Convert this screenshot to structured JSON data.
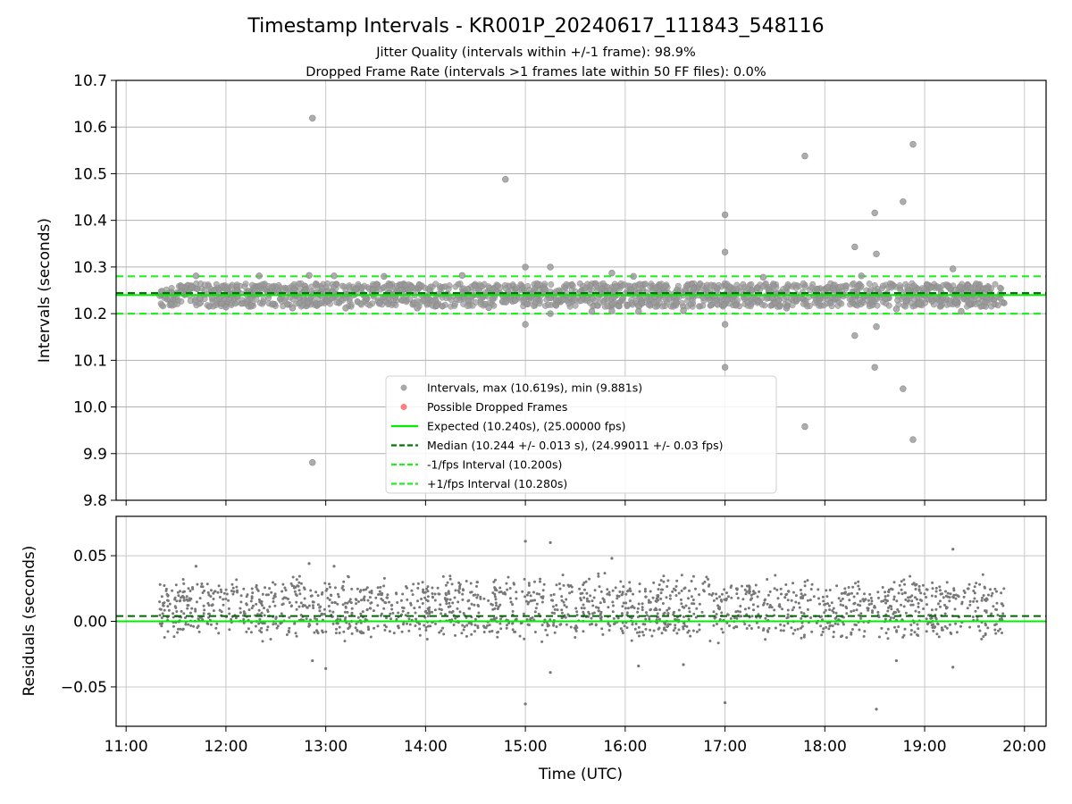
{
  "figure": {
    "title": "Timestamp Intervals - KR001P_20240617_111843_548116",
    "subtitle_1": "Jitter Quality (intervals within +/-1 frame): 98.9%",
    "subtitle_2": "Dropped Frame Rate (intervals >1 frames late within 50 FF files): 0.0%"
  },
  "chart_data": [
    {
      "type": "scatter",
      "panel": "intervals",
      "ylabel": "Intervals (seconds)",
      "xlim": [
        "10:54",
        "20:13"
      ],
      "ylim": [
        9.8,
        10.7
      ],
      "yticks": [
        9.8,
        9.9,
        10.0,
        10.1,
        10.2,
        10.3,
        10.4,
        10.5,
        10.6,
        10.7
      ],
      "ytick_labels": [
        "9.8",
        "9.9",
        "10.0",
        "10.1",
        "10.2",
        "10.3",
        "10.4",
        "10.5",
        "10.6",
        "10.7"
      ],
      "grid": true,
      "legend_position": "lower center",
      "band": {
        "x_start": "11:20",
        "x_end": "19:48",
        "low": 10.215,
        "high": 10.265
      },
      "series": [
        {
          "name": "Intervals, max (10.619s), min (9.881s)",
          "color": "#999999",
          "points": [
            [
              "12:52",
              10.619
            ],
            [
              "12:52",
              9.881
            ],
            [
              "14:48",
              10.488
            ],
            [
              "17:00",
              10.412
            ],
            [
              "17:00",
              10.332
            ],
            [
              "17:00",
              10.177
            ],
            [
              "17:00",
              10.085
            ],
            [
              "17:48",
              10.538
            ],
            [
              "17:48",
              9.958
            ],
            [
              "18:18",
              10.343
            ],
            [
              "18:18",
              10.153
            ],
            [
              "18:30",
              10.416
            ],
            [
              "18:31",
              10.328
            ],
            [
              "18:31",
              10.172
            ],
            [
              "18:30",
              10.085
            ],
            [
              "18:47",
              10.44
            ],
            [
              "18:47",
              10.039
            ],
            [
              "18:53",
              10.563
            ],
            [
              "18:53",
              9.93
            ],
            [
              "19:17",
              10.296
            ],
            [
              "15:00",
              10.3
            ],
            [
              "15:00",
              10.177
            ],
            [
              "15:15",
              10.3
            ],
            [
              "15:15",
              10.2
            ],
            [
              "15:52",
              10.287
            ],
            [
              "15:52",
              10.206
            ],
            [
              "11:42",
              10.281
            ],
            [
              "12:20",
              10.281
            ],
            [
              "12:50",
              10.282
            ],
            [
              "13:05",
              10.281
            ],
            [
              "13:35",
              10.28
            ],
            [
              "14:22",
              10.282
            ],
            [
              "16:05",
              10.28
            ],
            [
              "17:23",
              10.278
            ],
            [
              "18:22",
              10.281
            ],
            [
              "12:00",
              10.214
            ],
            [
              "12:40",
              10.212
            ],
            [
              "13:12",
              10.212
            ],
            [
              "13:55",
              10.212
            ],
            [
              "14:38",
              10.213
            ],
            [
              "15:40",
              10.205
            ],
            [
              "16:08",
              10.205
            ],
            [
              "16:35",
              10.207
            ],
            [
              "17:37",
              10.212
            ],
            [
              "18:43",
              10.21
            ],
            [
              "19:22",
              10.205
            ]
          ]
        },
        {
          "name": "Possible Dropped Frames",
          "color": "#ff6666",
          "points": []
        }
      ],
      "reference_lines": [
        {
          "name": "Expected (10.240s), (25.00000 fps)",
          "y": 10.24,
          "color": "#00ee00",
          "style": "solid"
        },
        {
          "name": "Median (10.244 +/- 0.013 s), (24.99011 +/- 0.03 fps)",
          "y": 10.244,
          "color": "#007700",
          "style": "dashed"
        },
        {
          "name": "-1/fps Interval (10.200s)",
          "y": 10.2,
          "color": "#22ee22",
          "style": "dashed"
        },
        {
          "name": "+1/fps Interval (10.280s)",
          "y": 10.28,
          "color": "#22ee22",
          "style": "dashed"
        }
      ]
    },
    {
      "type": "scatter",
      "panel": "residuals",
      "ylabel": "Residuals (seconds)",
      "xlabel": "Time (UTC)",
      "xlim": [
        "10:54",
        "20:13"
      ],
      "ylim": [
        -0.08,
        0.08
      ],
      "yticks": [
        -0.05,
        0.0,
        0.05
      ],
      "ytick_labels": [
        "−0.05",
        "0.00",
        "0.05"
      ],
      "xticks": [
        "11:00",
        "12:00",
        "13:00",
        "14:00",
        "15:00",
        "16:00",
        "17:00",
        "18:00",
        "19:00",
        "20:00"
      ],
      "grid": true,
      "band_clusters": [
        {
          "center": 0.02,
          "spread": 0.012
        },
        {
          "center": 0.0,
          "spread": 0.012
        }
      ],
      "points": [
        [
          "15:00",
          0.061
        ],
        [
          "15:15",
          0.06
        ],
        [
          "15:52",
          0.048
        ],
        [
          "19:17",
          0.055
        ],
        [
          "12:50",
          0.044
        ],
        [
          "13:05",
          0.042
        ],
        [
          "11:42",
          0.042
        ],
        [
          "15:00",
          -0.063
        ],
        [
          "15:15",
          -0.039
        ],
        [
          "17:00",
          -0.062
        ],
        [
          "18:31",
          -0.067
        ],
        [
          "19:17",
          -0.035
        ],
        [
          "13:00",
          -0.036
        ],
        [
          "12:52",
          -0.03
        ],
        [
          "16:08",
          -0.034
        ],
        [
          "16:35",
          -0.033
        ],
        [
          "18:43",
          -0.03
        ]
      ],
      "reference_lines": [
        {
          "y": 0.0,
          "color": "#00ee00",
          "style": "solid"
        },
        {
          "y": 0.004,
          "color": "#006600",
          "style": "dashed"
        }
      ]
    }
  ]
}
